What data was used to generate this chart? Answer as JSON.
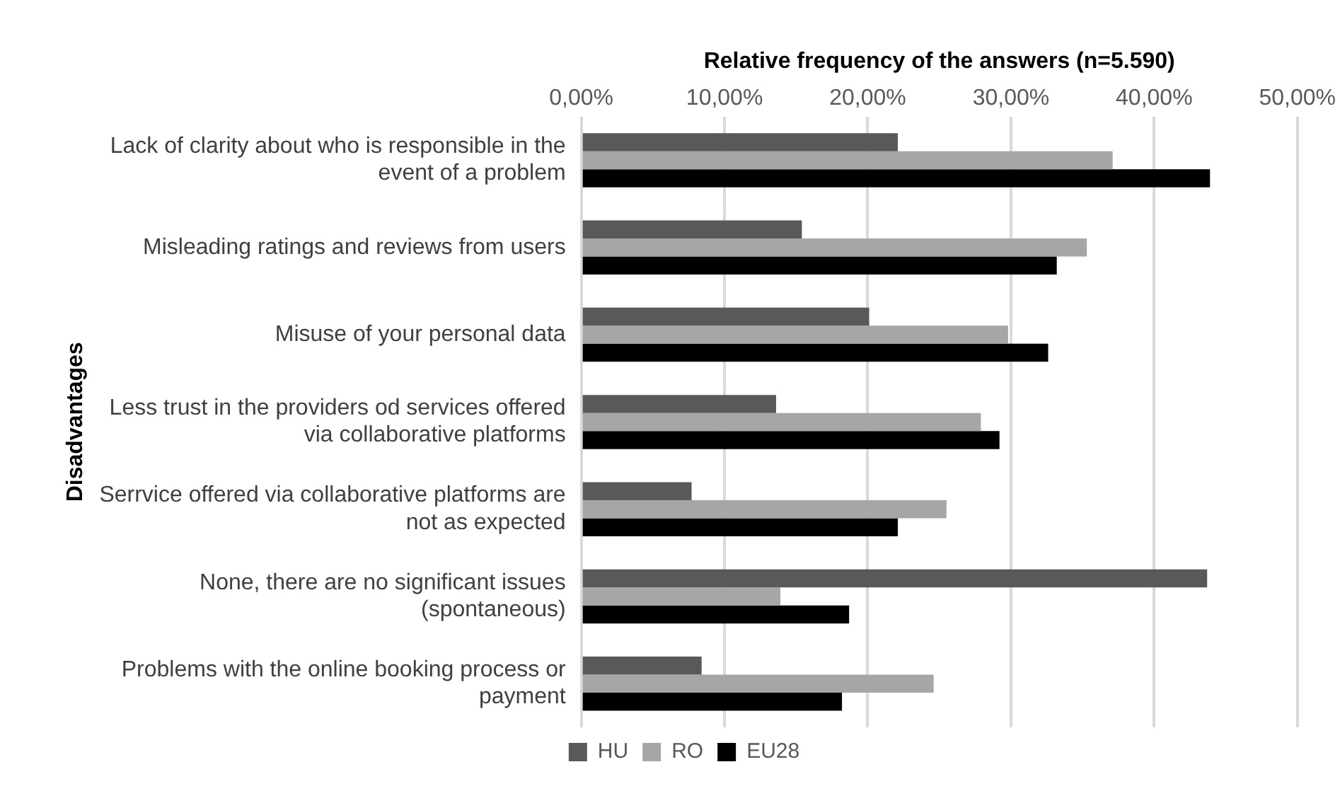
{
  "chart_data": {
    "type": "bar",
    "orientation": "horizontal",
    "xlabel": "Relative frequency of the answers (n=5.590)",
    "ylabel": "Disadvantages",
    "categories": [
      "Lack of clarity about who is responsible in the event of a problem",
      "Misleading ratings and reviews from users",
      "Misuse of your personal data",
      "Less trust in the providers od services offered via collaborative platforms",
      "Serrvice offered via collaborative platforms are not as expected",
      "None, there are no significant issues (spontaneous)",
      "Problems with the online booking process or payment"
    ],
    "series": [
      {
        "name": "HU",
        "color": "#595959",
        "values": [
          22.1,
          15.4,
          20.1,
          13.6,
          7.7,
          43.7,
          8.4
        ]
      },
      {
        "name": "RO",
        "color": "#a6a6a6",
        "values": [
          37.1,
          35.3,
          29.8,
          27.9,
          25.5,
          13.9,
          24.6
        ]
      },
      {
        "name": "EU28",
        "color": "#000000",
        "values": [
          43.9,
          33.2,
          32.6,
          29.2,
          22.1,
          18.7,
          18.2
        ]
      }
    ],
    "xlim": [
      0,
      50
    ],
    "xticks": [
      {
        "value": 0,
        "label": "0,00%"
      },
      {
        "value": 10,
        "label": "10,00%"
      },
      {
        "value": 20,
        "label": "20,00%"
      },
      {
        "value": 30,
        "label": "30,00%"
      },
      {
        "value": 40,
        "label": "40,00%"
      },
      {
        "value": 50,
        "label": "50,00%"
      }
    ],
    "grid": "x",
    "legend": "bottom"
  }
}
